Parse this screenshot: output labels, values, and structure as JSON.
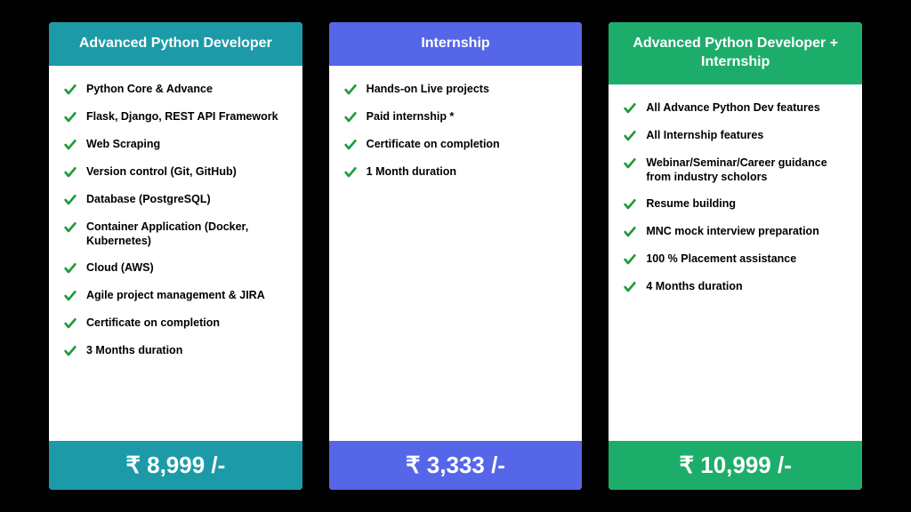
{
  "background_color": "#000000",
  "check_color": "#1e9b3a",
  "cards": [
    {
      "color": "#1c9aa8",
      "title": "Advanced Python Developer",
      "price": "₹ 8,999 /-",
      "features": [
        "Python Core & Advance",
        "Flask, Django, REST API Framework",
        "Web Scraping",
        "Version control (Git, GitHub)",
        "Database (PostgreSQL)",
        "Container Application (Docker, Kubernetes)",
        "Cloud (AWS)",
        "Agile project management & JIRA",
        "Certificate on completion",
        "3 Months duration"
      ]
    },
    {
      "color": "#5566e8",
      "title": "Internship",
      "price": "₹ 3,333 /-",
      "features": [
        "Hands-on Live projects",
        "Paid internship *",
        "Certificate on completion",
        " 1 Month duration"
      ]
    },
    {
      "color": "#1dad6a",
      "title": "Advanced Python Developer + Internship",
      "price": "₹ 10,999 /-",
      "features": [
        "All Advance Python Dev features",
        "All Internship features",
        "Webinar/Seminar/Career guidance from industry scholors",
        "Resume building",
        "MNC mock interview preparation",
        "100 % Placement  assistance",
        "4 Months duration"
      ]
    }
  ]
}
